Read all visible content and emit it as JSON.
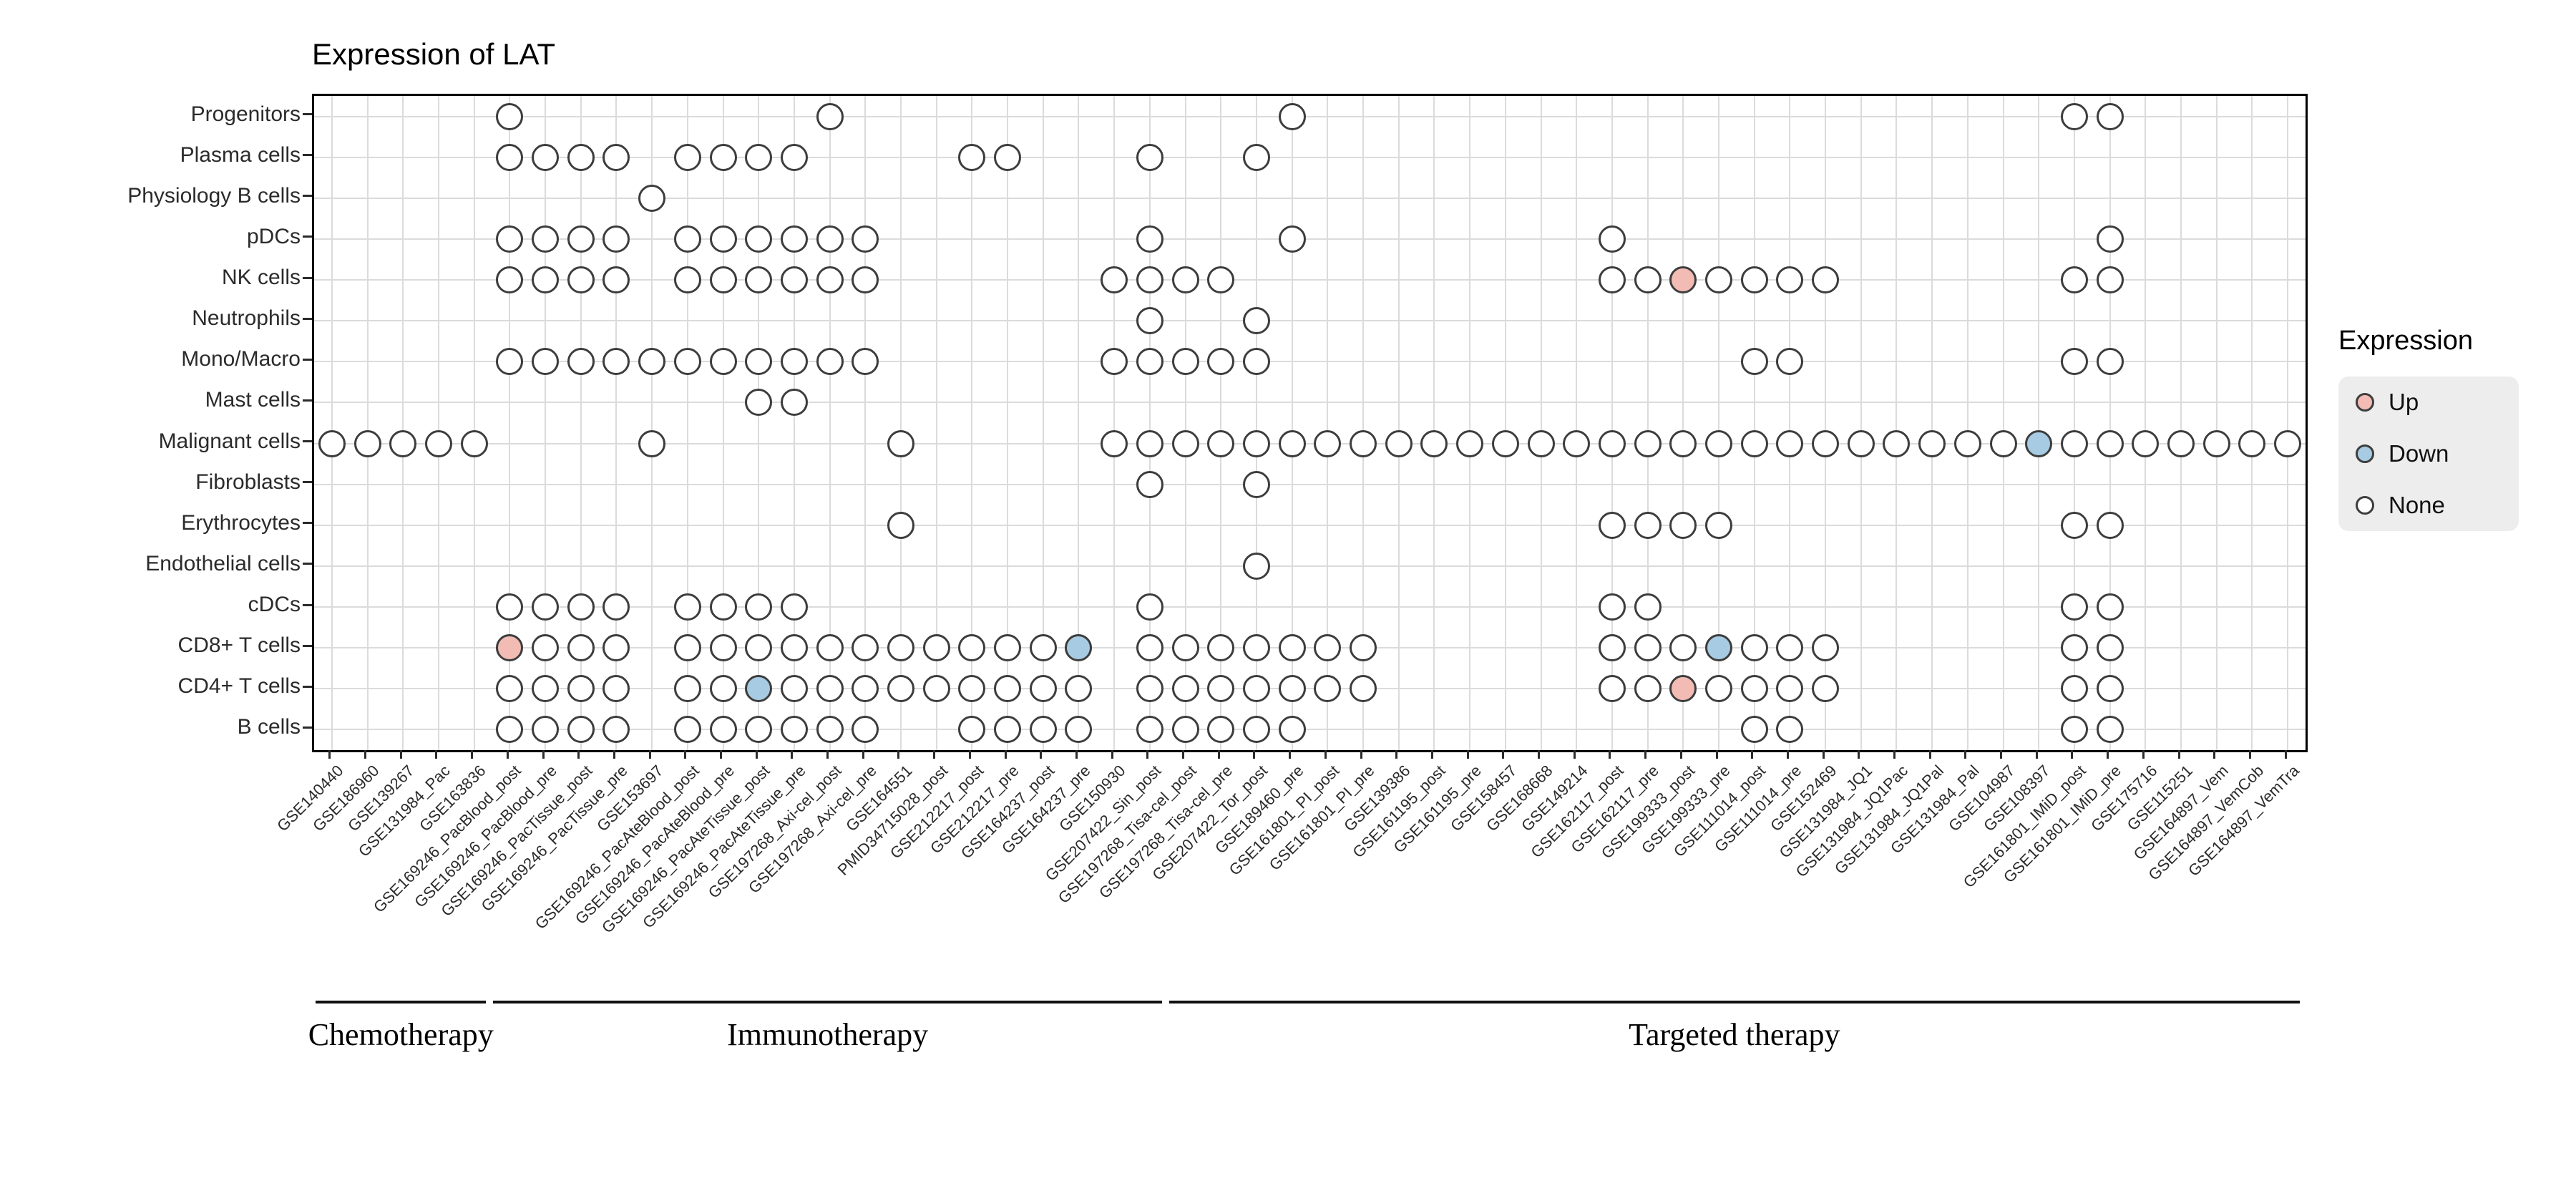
{
  "chart_data": {
    "type": "heatmap",
    "mark": "circle",
    "title": "Expression of LAT",
    "xlabel": "",
    "ylabel": "",
    "grid": true,
    "legend_position": "right",
    "legend_title": "Expression",
    "legend_items": [
      {
        "label": "Up",
        "value": "up",
        "color": "#F2BCB5"
      },
      {
        "label": "Down",
        "value": "down",
        "color": "#A7CBE2"
      },
      {
        "label": "None",
        "value": "none",
        "color": "#FFFFFF"
      }
    ],
    "colors": {
      "up": "#F2BCB5",
      "down": "#A7CBE2",
      "none": "#FFFFFF",
      "dot_border": "#3D3D3D",
      "grid": "#DBDBDB",
      "frame": "#000000"
    },
    "rows": [
      "Progenitors",
      "Plasma cells",
      "Physiology B cells",
      "pDCs",
      "NK cells",
      "Neutrophils",
      "Mono/Macro",
      "Mast cells",
      "Malignant cells",
      "Fibroblasts",
      "Erythrocytes",
      "Endothelial cells",
      "cDCs",
      "CD8+ T cells",
      "CD4+ T cells",
      "B cells"
    ],
    "columns": [
      "GSE140440",
      "GSE186960",
      "GSE139267",
      "GSE131984_Pac",
      "GSE163836",
      "GSE169246_PacBlood_post",
      "GSE169246_PacBlood_pre",
      "GSE169246_PacTissue_post",
      "GSE169246_PacTissue_pre",
      "GSE153697",
      "GSE169246_PacAteBlood_post",
      "GSE169246_PacAteBlood_pre",
      "GSE169246_PacAteTissue_post",
      "GSE169246_PacAteTissue_pre",
      "GSE197268_Axi-cel_post",
      "GSE197268_Axi-cel_pre",
      "GSE164551",
      "PMID34715028_post",
      "GSE212217_post",
      "GSE212217_pre",
      "GSE164237_post",
      "GSE164237_pre",
      "GSE150930",
      "GSE207422_Sin_post",
      "GSE197268_Tisa-cel_post",
      "GSE197268_Tisa-cel_pre",
      "GSE207422_Tor_post",
      "GSE189460_pre",
      "GSE161801_PI_post",
      "GSE161801_PI_pre",
      "GSE139386",
      "GSE161195_post",
      "GSE161195_pre",
      "GSE158457",
      "GSE168668",
      "GSE149214",
      "GSE162117_post",
      "GSE162117_pre",
      "GSE199333_post",
      "GSE199333_pre",
      "GSE111014_post",
      "GSE111014_pre",
      "GSE152469",
      "GSE131984_JQ1",
      "GSE131984_JQ1Pac",
      "GSE131984_JQ1Pal",
      "GSE131984_Pal",
      "GSE104987",
      "GSE108397",
      "GSE161801_IMiD_post",
      "GSE161801_IMiD_pre",
      "GSE175716",
      "GSE115251",
      "GSE164897_Vem",
      "GSE164897_VemCob",
      "GSE164897_VemTra"
    ],
    "groups": [
      {
        "label": "Chemotherapy",
        "start": 1,
        "end": 5
      },
      {
        "label": "Immunotherapy",
        "start": 6,
        "end": 24
      },
      {
        "label": "Targeted therapy",
        "start": 25,
        "end": 56
      }
    ],
    "matrix": [
      {
        "cell_type": "Progenitors",
        "none": [
          6,
          15,
          28,
          50,
          51
        ],
        "up": [],
        "down": []
      },
      {
        "cell_type": "Plasma cells",
        "none": [
          6,
          7,
          8,
          9,
          11,
          12,
          13,
          14,
          19,
          20,
          24,
          27
        ],
        "up": [],
        "down": []
      },
      {
        "cell_type": "Physiology B cells",
        "none": [
          10
        ],
        "up": [],
        "down": []
      },
      {
        "cell_type": "pDCs",
        "none": [
          6,
          7,
          8,
          9,
          11,
          12,
          13,
          14,
          15,
          16,
          24,
          28,
          37,
          51
        ],
        "up": [],
        "down": []
      },
      {
        "cell_type": "NK cells",
        "none": [
          6,
          7,
          8,
          9,
          11,
          12,
          13,
          14,
          15,
          16,
          23,
          24,
          25,
          26,
          37,
          38,
          40,
          41,
          42,
          43,
          50,
          51
        ],
        "up": [
          39
        ],
        "down": []
      },
      {
        "cell_type": "Neutrophils",
        "none": [
          24,
          27
        ],
        "up": [],
        "down": []
      },
      {
        "cell_type": "Mono/Macro",
        "none": [
          6,
          7,
          8,
          9,
          10,
          11,
          12,
          13,
          14,
          15,
          16,
          23,
          24,
          25,
          26,
          27,
          41,
          42,
          50,
          51
        ],
        "up": [],
        "down": []
      },
      {
        "cell_type": "Mast cells",
        "none": [
          13,
          14
        ],
        "up": [],
        "down": []
      },
      {
        "cell_type": "Malignant cells",
        "none": [
          1,
          2,
          3,
          4,
          5,
          10,
          17,
          23,
          24,
          25,
          26,
          27,
          28,
          29,
          30,
          31,
          32,
          33,
          34,
          35,
          36,
          37,
          38,
          39,
          40,
          41,
          42,
          43,
          44,
          45,
          46,
          47,
          48,
          50,
          51,
          52,
          53,
          54,
          55,
          56
        ],
        "up": [],
        "down": [
          49
        ]
      },
      {
        "cell_type": "Fibroblasts",
        "none": [
          24,
          27
        ],
        "up": [],
        "down": []
      },
      {
        "cell_type": "Erythrocytes",
        "none": [
          17,
          37,
          38,
          39,
          40,
          50,
          51
        ],
        "up": [],
        "down": []
      },
      {
        "cell_type": "Endothelial cells",
        "none": [
          27
        ],
        "up": [],
        "down": []
      },
      {
        "cell_type": "cDCs",
        "none": [
          6,
          7,
          8,
          9,
          11,
          12,
          13,
          14,
          24,
          37,
          38,
          50,
          51
        ],
        "up": [],
        "down": []
      },
      {
        "cell_type": "CD8+ T cells",
        "none": [
          7,
          8,
          9,
          11,
          12,
          13,
          14,
          15,
          16,
          17,
          18,
          19,
          20,
          21,
          24,
          25,
          26,
          27,
          28,
          29,
          30,
          37,
          38,
          39,
          41,
          42,
          43,
          50,
          51
        ],
        "up": [
          6
        ],
        "down": [
          22,
          40
        ]
      },
      {
        "cell_type": "CD4+ T cells",
        "none": [
          6,
          7,
          8,
          9,
          11,
          12,
          14,
          15,
          16,
          17,
          18,
          19,
          20,
          21,
          22,
          24,
          25,
          26,
          27,
          28,
          29,
          30,
          37,
          38,
          40,
          41,
          42,
          43,
          50,
          51
        ],
        "up": [
          39
        ],
        "down": [
          13
        ]
      },
      {
        "cell_type": "B cells",
        "none": [
          6,
          7,
          8,
          9,
          11,
          12,
          13,
          14,
          15,
          16,
          19,
          20,
          21,
          22,
          24,
          25,
          26,
          27,
          28,
          41,
          42,
          50,
          51
        ],
        "up": [],
        "down": []
      }
    ]
  }
}
